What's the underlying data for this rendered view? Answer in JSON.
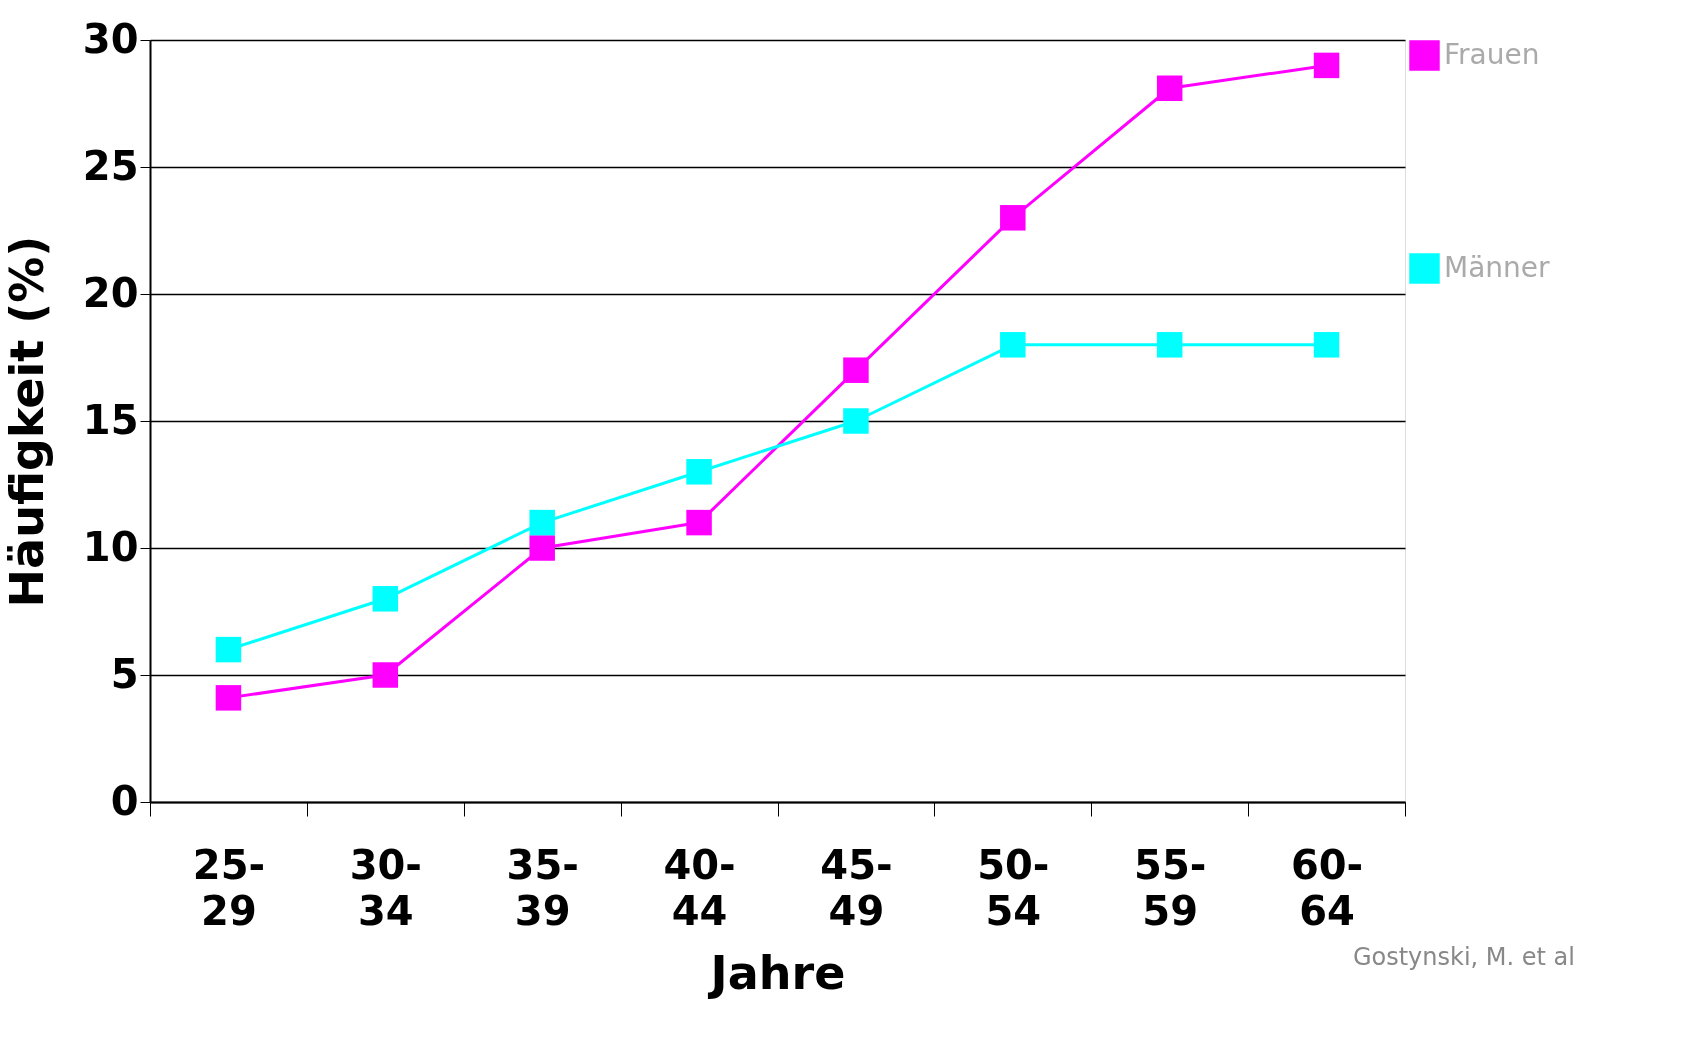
{
  "chart_data": {
    "type": "line",
    "xlabel": "Jahre",
    "ylabel": "Häufigkeit (%)",
    "categories": [
      "25-29",
      "30-34",
      "35-39",
      "40-44",
      "45-49",
      "50-54",
      "55-59",
      "60-64"
    ],
    "series": [
      {
        "name": "Frauen",
        "color": "#ff00ff",
        "values": [
          4.1,
          5,
          10,
          11,
          17,
          23,
          28.1,
          29
        ]
      },
      {
        "name": "Männer",
        "color": "#00ffff",
        "values": [
          6,
          8,
          11,
          13,
          15,
          18,
          18,
          18
        ]
      }
    ],
    "ylim": [
      0,
      30
    ],
    "yticks": [
      0,
      5,
      10,
      15,
      20,
      25,
      30
    ],
    "grid": "y",
    "legend": "right",
    "marker": "square",
    "line_style": "solid",
    "annotations": [
      "Gostynski, M. et al"
    ]
  }
}
